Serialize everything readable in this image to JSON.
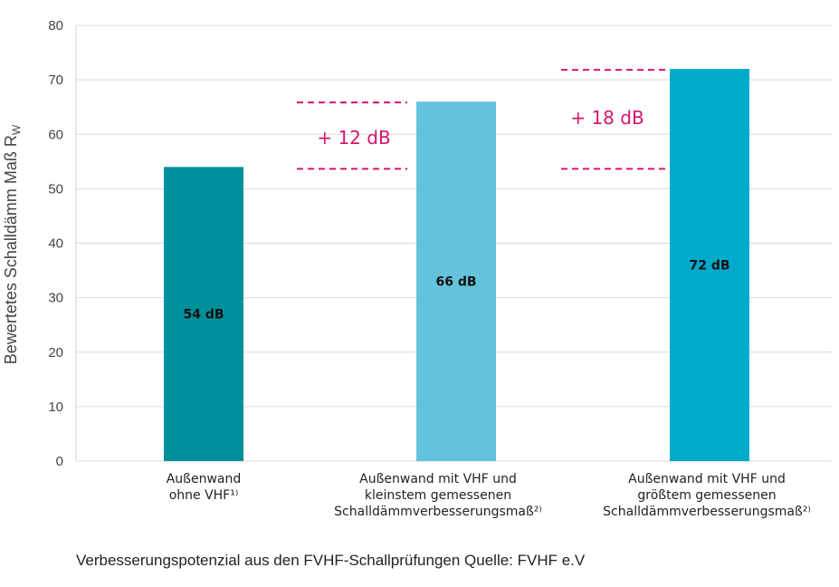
{
  "chart_data": {
    "type": "bar",
    "ylabel": "Bewertetes Schalldämm Maß R",
    "ylabel_sub": "W",
    "ylim": [
      0,
      80
    ],
    "yticks": [
      0,
      10,
      20,
      30,
      40,
      50,
      60,
      70,
      80
    ],
    "grid": true,
    "categories": [
      [
        "Außenwand",
        "ohne VHF¹⁾"
      ],
      [
        "Außenwand mit VHF und",
        "kleinstem gemessenen",
        "Schalldämmverbesserungsmaß²⁾"
      ],
      [
        "Außenwand mit VHF und",
        "größtem gemessenen",
        "Schalldämmverbesserungsmaß²⁾"
      ]
    ],
    "values": [
      54,
      66,
      72
    ],
    "value_labels": [
      "54 dB",
      "66 dB",
      "72 dB"
    ],
    "colors": [
      "#00909b",
      "#64c3dc",
      "#00aacb"
    ],
    "annotations": [
      {
        "text": "+ 12 dB",
        "from": 54,
        "to": 66,
        "bar": 1
      },
      {
        "text": "+ 18 dB",
        "from": 54,
        "to": 72,
        "bar": 2
      }
    ],
    "annotation_color": "#d6156e"
  },
  "caption": "Verbesserungspotenzial aus den FVHF-Schallprüfungen Quelle: FVHF e.V"
}
